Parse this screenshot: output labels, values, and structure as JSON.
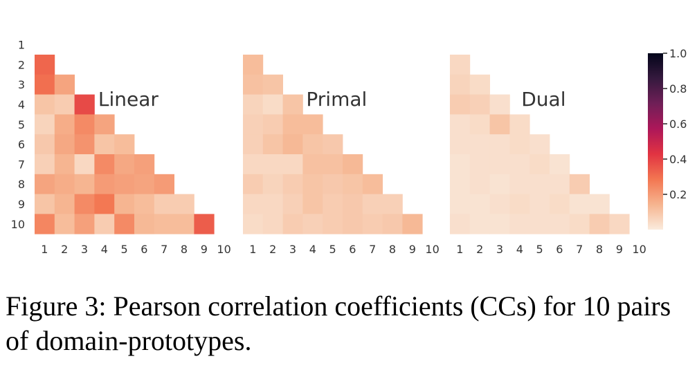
{
  "caption": "Figure 3: Pearson correlation coefficients (CCs) for 10 pairs of domain-prototypes.",
  "colorbar": {
    "ticks": [
      0.2,
      0.4,
      0.6,
      0.8,
      1.0
    ],
    "tick_labels": [
      "0.2",
      "0.4",
      "0.6",
      "0.8",
      "1.0"
    ],
    "range": [
      0,
      1.0
    ],
    "colormap": "rocket_r",
    "color_stops": [
      "#faebdd",
      "#f6b48f",
      "#f37651",
      "#e13342",
      "#ad1759",
      "#701f57",
      "#35193e",
      "#03051a"
    ]
  },
  "chart_data": [
    {
      "type": "heatmap",
      "title": "Linear",
      "shape": "lower-triangle",
      "x": [
        "1",
        "2",
        "3",
        "4",
        "5",
        "6",
        "7",
        "8",
        "9",
        "10"
      ],
      "y": [
        "1",
        "2",
        "3",
        "4",
        "5",
        "6",
        "7",
        "8",
        "9",
        "10"
      ],
      "rows": [
        [],
        [
          0.32
        ],
        [
          0.3,
          0.18
        ],
        [
          0.1,
          0.08,
          0.38
        ],
        [
          0.06,
          0.16,
          0.24,
          0.18
        ],
        [
          0.09,
          0.17,
          0.22,
          0.1,
          0.12
        ],
        [
          0.07,
          0.14,
          0.05,
          0.24,
          0.17,
          0.19
        ],
        [
          0.18,
          0.16,
          0.14,
          0.2,
          0.19,
          0.18,
          0.2
        ],
        [
          0.1,
          0.14,
          0.24,
          0.28,
          0.14,
          0.12,
          0.08,
          0.08
        ],
        [
          0.25,
          0.12,
          0.19,
          0.08,
          0.24,
          0.13,
          0.12,
          0.12,
          0.34
        ]
      ]
    },
    {
      "type": "heatmap",
      "title": "Primal",
      "shape": "lower-triangle",
      "x": [
        "1",
        "2",
        "3",
        "4",
        "5",
        "6",
        "7",
        "8",
        "9",
        "10"
      ],
      "y": [
        "1",
        "2",
        "3",
        "4",
        "5",
        "6",
        "7",
        "8",
        "9",
        "10"
      ],
      "rows": [
        [],
        [
          0.12
        ],
        [
          0.11,
          0.1
        ],
        [
          0.06,
          0.04,
          0.1
        ],
        [
          0.07,
          0.08,
          0.12,
          0.12
        ],
        [
          0.07,
          0.1,
          0.13,
          0.1,
          0.09
        ],
        [
          0.05,
          0.05,
          0.05,
          0.11,
          0.11,
          0.13
        ],
        [
          0.08,
          0.06,
          0.08,
          0.1,
          0.09,
          0.1,
          0.12
        ],
        [
          0.05,
          0.05,
          0.07,
          0.1,
          0.08,
          0.09,
          0.07,
          0.07
        ],
        [
          0.04,
          0.05,
          0.08,
          0.07,
          0.08,
          0.09,
          0.08,
          0.09,
          0.13
        ]
      ]
    },
    {
      "type": "heatmap",
      "title": "Dual",
      "shape": "lower-triangle",
      "x": [
        "1",
        "2",
        "3",
        "4",
        "5",
        "6",
        "7",
        "8",
        "9",
        "10"
      ],
      "y": [
        "1",
        "2",
        "3",
        "4",
        "5",
        "6",
        "7",
        "8",
        "9",
        "10"
      ],
      "rows": [
        [],
        [
          0.05
        ],
        [
          0.06,
          0.04
        ],
        [
          0.08,
          0.07,
          0.03
        ],
        [
          0.03,
          0.04,
          0.1,
          0.04
        ],
        [
          0.03,
          0.03,
          0.03,
          0.04,
          0.03
        ],
        [
          0.02,
          0.03,
          0.03,
          0.03,
          0.04,
          0.02
        ],
        [
          0.02,
          0.03,
          0.02,
          0.03,
          0.03,
          0.03,
          0.08
        ],
        [
          0.02,
          0.02,
          0.03,
          0.04,
          0.03,
          0.04,
          0.02,
          0.02
        ],
        [
          0.03,
          0.02,
          0.02,
          0.03,
          0.03,
          0.03,
          0.04,
          0.08,
          0.05
        ]
      ]
    }
  ]
}
